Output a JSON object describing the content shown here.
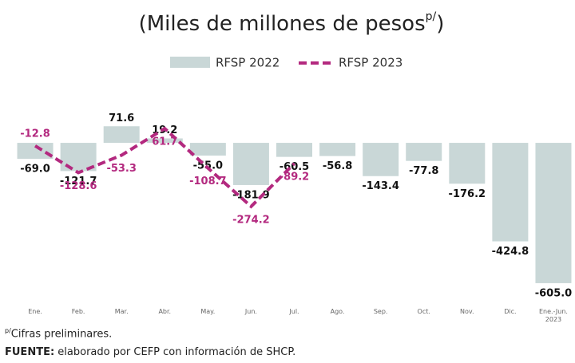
{
  "chart_data": {
    "type": "bar_line",
    "title": {
      "text": "(Miles de millones de pesos",
      "superscript": "p/",
      "close": ")"
    },
    "categories": [
      "Ene.",
      "Feb.",
      "Mar.",
      "Abr.",
      "May.",
      "Jun.",
      "Jul.",
      "Ago.",
      "Sep.",
      "Oct.",
      "Nov.",
      "Dic.",
      "Ene.-Jun. 2023"
    ],
    "series": [
      {
        "name": "RFSP 2022",
        "type": "bar",
        "color": "#c9d7d7",
        "values": [
          -69,
          -121.7,
          71.6,
          19.2,
          -55,
          -181.9,
          -60.5,
          -56.8,
          -143.4,
          -77.8,
          -176.2,
          -424.8,
          -605
        ],
        "value_labels": [
          "-69.0",
          "-121.7",
          "71.6",
          "19.2",
          "-55.0",
          "-181.9",
          "-60.5",
          "-56.8",
          "-143.4",
          "-77.8",
          "-176.2",
          "-424.8",
          "-605.0"
        ]
      },
      {
        "name": "RFSP 2023",
        "type": "line",
        "color": "#b3297f",
        "dashed": true,
        "values": [
          -12.8,
          -128.6,
          -53.3,
          61.7,
          -108.7,
          -274.2,
          -89.2,
          null,
          null,
          null,
          null,
          null,
          null
        ],
        "value_labels": [
          "-12.8",
          "-128.6",
          "-53.3",
          "61.7",
          "-108.7",
          "-274.2",
          "-89.2",
          null,
          null,
          null,
          null,
          null,
          null
        ]
      }
    ],
    "ylim": [
      -650,
      100
    ],
    "notes": {
      "superscript": "p/",
      "prelim": "Cifras preliminares.",
      "source_label": "FUENTE:",
      "source": " elaborado por CEFP con información de SHCP."
    }
  }
}
